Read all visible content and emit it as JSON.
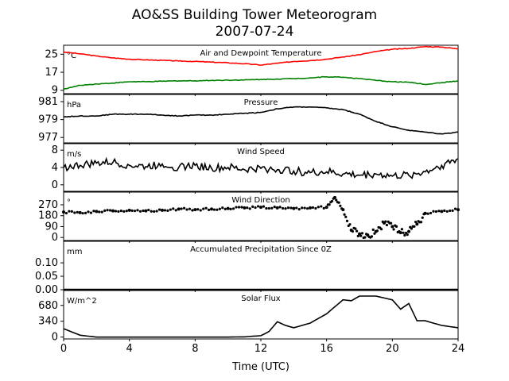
{
  "title": "AO&SS Building Tower Meteorogram",
  "subtitle": "2007-07-24",
  "xlabel": "Time (UTC)",
  "colors": {
    "air_temp": "#ff0000",
    "dewpoint": "#008000",
    "default": "#000000"
  },
  "chart_data": [
    {
      "type": "line",
      "title": "Air and Dewpoint Temperature",
      "unit": "°C",
      "xlim": [
        0,
        24
      ],
      "ylim": [
        7.5,
        29
      ],
      "yticks": [
        9,
        17,
        25
      ],
      "x": [
        0,
        1,
        2,
        3,
        4,
        5,
        6,
        7,
        8,
        9,
        10,
        11,
        12,
        13,
        14,
        15,
        16,
        17,
        18,
        19,
        20,
        21,
        22,
        23,
        24
      ],
      "series": [
        {
          "key": "air",
          "values": [
            26,
            25.2,
            24.2,
            23.4,
            22.8,
            22.5,
            22.3,
            22.0,
            21.8,
            21.5,
            21.2,
            20.8,
            20.2,
            21.0,
            21.8,
            22.2,
            22.8,
            23.8,
            24.8,
            26.2,
            27.2,
            27.6,
            28.4,
            28.2,
            27.4
          ]
        },
        {
          "key": "dew",
          "values": [
            9.5,
            11.2,
            11.8,
            12.2,
            12.8,
            12.8,
            13.0,
            13.2,
            13.2,
            13.4,
            13.5,
            13.6,
            13.8,
            14.0,
            14.2,
            14.5,
            15.0,
            14.8,
            14.2,
            13.4,
            12.8,
            12.6,
            11.6,
            12.4,
            13.2
          ]
        }
      ]
    },
    {
      "type": "line",
      "title": "Pressure",
      "unit": "hPa",
      "xlim": [
        0,
        24
      ],
      "ylim": [
        976.4,
        981.8
      ],
      "yticks": [
        977,
        979,
        981
      ],
      "x": [
        0,
        1,
        2,
        3,
        4,
        5,
        6,
        7,
        8,
        9,
        10,
        11,
        12,
        13,
        14,
        15,
        16,
        17,
        18,
        19,
        20,
        21,
        22,
        23,
        24
      ],
      "series": [
        {
          "key": "pressure",
          "values": [
            979.3,
            979.4,
            979.4,
            979.6,
            979.6,
            979.6,
            979.5,
            979.4,
            979.5,
            979.5,
            979.6,
            979.7,
            979.8,
            980.2,
            980.4,
            980.4,
            980.3,
            980.1,
            979.6,
            978.8,
            978.2,
            977.8,
            977.6,
            977.4,
            977.6
          ]
        }
      ]
    },
    {
      "type": "line",
      "title": "Wind Speed",
      "unit": "m/s",
      "xlim": [
        0,
        24
      ],
      "ylim": [
        -1.5,
        9.5
      ],
      "yticks": [
        0,
        4,
        8
      ],
      "x": [
        0,
        1,
        2,
        3,
        4,
        5,
        6,
        7,
        8,
        9,
        10,
        11,
        12,
        13,
        14,
        15,
        16,
        17,
        18,
        19,
        20,
        21,
        22,
        23,
        24
      ],
      "series": [
        {
          "key": "wind_speed",
          "values": [
            4.0,
            4.5,
            5.0,
            5.2,
            4.5,
            4.2,
            4.8,
            4.0,
            4.5,
            3.8,
            4.0,
            3.5,
            3.8,
            3.5,
            3.2,
            2.8,
            3.0,
            2.5,
            2.2,
            2.5,
            2.0,
            2.2,
            3.0,
            4.5,
            6.0
          ]
        }
      ]
    },
    {
      "type": "scatter",
      "title": "Wind Direction",
      "unit": "°",
      "xlim": [
        0,
        24
      ],
      "ylim": [
        -25,
        375
      ],
      "yticks": [
        0,
        90,
        180,
        270
      ],
      "x": [
        0,
        1,
        2,
        3,
        4,
        5,
        6,
        7,
        8,
        9,
        10,
        11,
        12,
        13,
        14,
        15,
        16,
        16.5,
        17,
        17.5,
        18,
        18.5,
        19,
        19.5,
        20,
        20.5,
        21,
        21.5,
        22,
        23,
        24
      ],
      "series": [
        {
          "key": "wind_direction",
          "values": [
            210,
            205,
            215,
            220,
            225,
            220,
            225,
            235,
            230,
            235,
            240,
            245,
            250,
            245,
            240,
            245,
            250,
            330,
            230,
            60,
            30,
            20,
            50,
            120,
            90,
            40,
            50,
            110,
            200,
            215,
            230
          ]
        }
      ]
    },
    {
      "type": "line",
      "title": "Accumulated Precipitation Since 0Z",
      "unit": "mm",
      "xlim": [
        0,
        24
      ],
      "ylim": [
        0,
        0.18
      ],
      "yticks": [
        "0.00",
        "0.05",
        "0.10"
      ],
      "x": [
        0,
        24
      ],
      "series": [
        {
          "key": "precip",
          "values": [
            0,
            0
          ]
        }
      ]
    },
    {
      "type": "line",
      "title": "Solar Flux",
      "unit": "W/m^2",
      "xlim": [
        0,
        24
      ],
      "ylim": [
        -40,
        1000
      ],
      "yticks": [
        0,
        340,
        680
      ],
      "xticks": [
        0,
        4,
        8,
        12,
        16,
        20,
        24
      ],
      "x": [
        0,
        1,
        2,
        3,
        4,
        5,
        6,
        7,
        8,
        9,
        10,
        11,
        12,
        12.5,
        13,
        13.5,
        14,
        15,
        16,
        16.5,
        17,
        17.5,
        18,
        19,
        20,
        20.5,
        21,
        21.5,
        22,
        23,
        24
      ],
      "series": [
        {
          "key": "solar",
          "values": [
            180,
            40,
            0,
            0,
            0,
            0,
            0,
            0,
            0,
            0,
            0,
            5,
            30,
            120,
            330,
            250,
            200,
            300,
            500,
            650,
            800,
            780,
            880,
            880,
            800,
            600,
            720,
            350,
            350,
            250,
            200
          ]
        }
      ]
    }
  ]
}
